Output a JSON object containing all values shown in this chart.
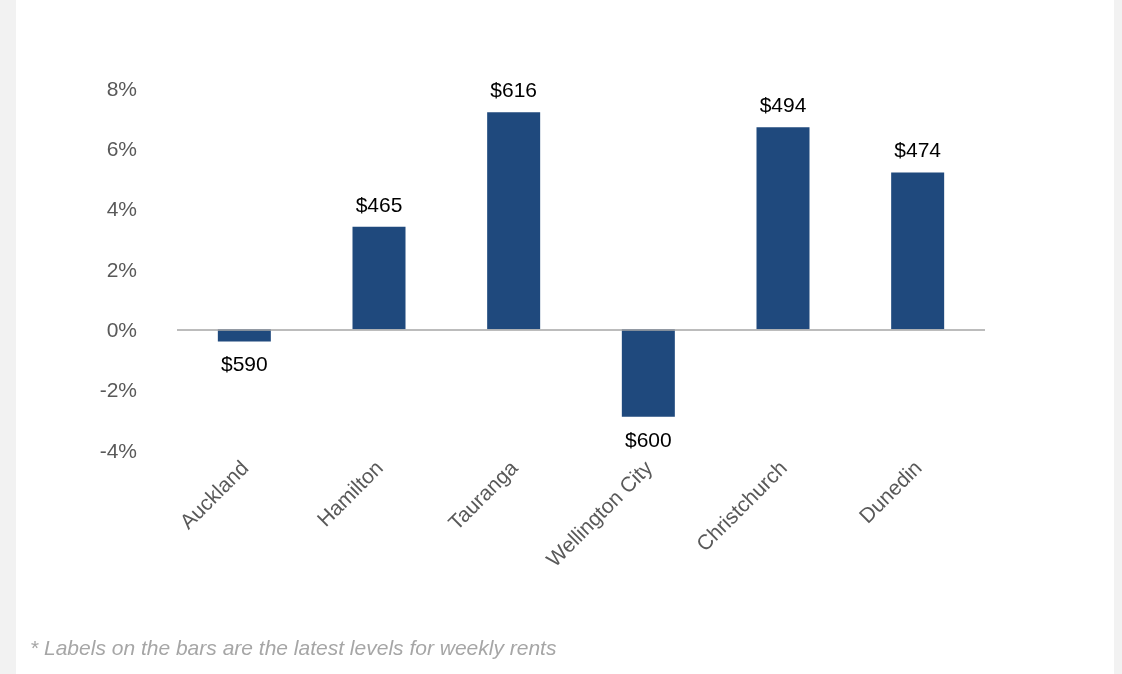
{
  "chart_data": {
    "type": "bar",
    "categories": [
      "Auckland",
      "Hamilton",
      "Tauranga",
      "Wellington City",
      "Christchurch",
      "Dunedin"
    ],
    "values": [
      -0.4,
      3.4,
      7.2,
      -2.9,
      6.7,
      5.2
    ],
    "color": "#1f497d",
    "ylim": [
      -4,
      8
    ],
    "yticks": [
      {
        "value": -4,
        "label": "-4%"
      },
      {
        "value": -2,
        "label": "-2%"
      },
      {
        "value": 0,
        "label": "0%"
      },
      {
        "value": 2,
        "label": "2%"
      },
      {
        "value": 4,
        "label": "4%"
      },
      {
        "value": 6,
        "label": "6%"
      },
      {
        "value": 8,
        "label": "8%"
      }
    ],
    "ref_lines": [
      {
        "axis": "y",
        "value": 0,
        "color": "#a6a6a6"
      }
    ],
    "annotations": [
      {
        "text": "$590",
        "x": "Auckland",
        "y": -0.4
      },
      {
        "text": "$465",
        "x": "Hamilton",
        "y": 3.4
      },
      {
        "text": "$616",
        "x": "Tauranga",
        "y": 7.2
      },
      {
        "text": "$600",
        "x": "Wellington City",
        "y": -2.9
      },
      {
        "text": "$494",
        "x": "Christchurch",
        "y": 6.7
      },
      {
        "text": "$474",
        "x": "Dunedin",
        "y": 5.2
      },
      "* Labels on the bars are the latest levels for weekly rents"
    ]
  }
}
